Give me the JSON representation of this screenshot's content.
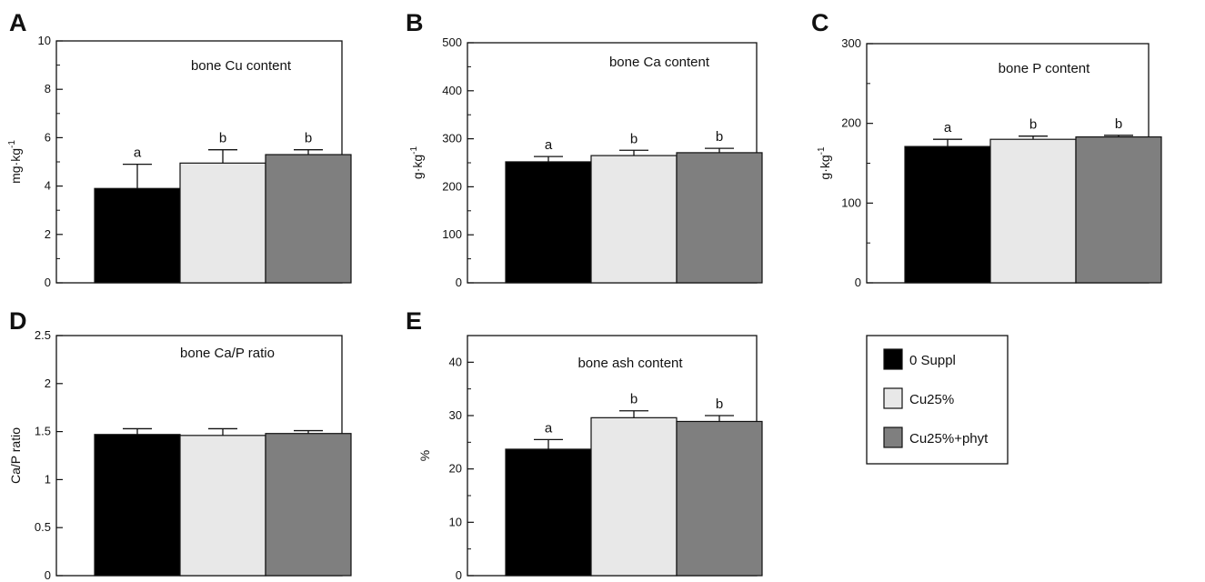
{
  "chart_data": [
    {
      "panel": "A",
      "type": "bar",
      "title": "bone Cu content",
      "ylabel": "mg·kg",
      "ylabel_sup": "-1",
      "ylim": [
        0,
        10
      ],
      "yticks": [
        0,
        2,
        4,
        6,
        8,
        10
      ],
      "ytick_labels": [
        "0",
        "2",
        "4",
        "6",
        "8",
        "10"
      ],
      "minor": true,
      "categories": [
        "0 Suppl",
        "Cu25%",
        "Cu25%+phyt"
      ],
      "values": [
        3.9,
        4.95,
        5.3
      ],
      "errors": [
        1.0,
        0.55,
        0.2
      ],
      "labels": [
        "a",
        "b",
        "b"
      ]
    },
    {
      "panel": "B",
      "type": "bar",
      "title": "bone Ca content",
      "ylabel": "g·kg",
      "ylabel_sup": "-1",
      "ylim": [
        0,
        500
      ],
      "yticks": [
        0,
        100,
        200,
        300,
        400,
        500
      ],
      "ytick_labels": [
        "0",
        "100",
        "200",
        "300",
        "400",
        "500"
      ],
      "minor": true,
      "categories": [
        "0 Suppl",
        "Cu25%",
        "Cu25%+phyt"
      ],
      "values": [
        252,
        265,
        271
      ],
      "errors": [
        11,
        11,
        9
      ],
      "labels": [
        "a",
        "b",
        "b"
      ]
    },
    {
      "panel": "C",
      "type": "bar",
      "title": "bone P content",
      "ylabel": "g·kg",
      "ylabel_sup": "-1",
      "ylim": [
        0,
        300
      ],
      "yticks": [
        0,
        100,
        200,
        300
      ],
      "ytick_labels": [
        "0",
        "100",
        "200",
        "300"
      ],
      "minor": true,
      "categories": [
        "0 Suppl",
        "Cu25%",
        "Cu25%+phyt"
      ],
      "values": [
        171,
        180,
        183
      ],
      "errors": [
        9,
        4,
        2
      ],
      "labels": [
        "a",
        "b",
        "b"
      ]
    },
    {
      "panel": "D",
      "type": "bar",
      "title": "bone Ca/P ratio",
      "ylabel": "Ca/P ratio",
      "ylabel_sup": "",
      "ylim": [
        0,
        2.5
      ],
      "yticks": [
        0,
        0.5,
        1,
        1.5,
        2,
        2.5
      ],
      "ytick_labels": [
        "0",
        "0.5",
        "1",
        "1.5",
        "2",
        "2.5"
      ],
      "minor": false,
      "categories": [
        "0 Suppl",
        "Cu25%",
        "Cu25%+phyt"
      ],
      "values": [
        1.47,
        1.46,
        1.48
      ],
      "errors": [
        0.06,
        0.07,
        0.03
      ],
      "labels": [
        "",
        "",
        ""
      ]
    },
    {
      "panel": "E",
      "type": "bar",
      "title": "bone ash content",
      "ylabel": "%",
      "ylabel_sup": "",
      "ylim": [
        0,
        45
      ],
      "yticks": [
        0,
        10,
        20,
        30,
        40
      ],
      "ytick_labels": [
        "0",
        "10",
        "20",
        "30",
        "40"
      ],
      "minor": true,
      "categories": [
        "0 Suppl",
        "Cu25%",
        "Cu25%+phyt"
      ],
      "values": [
        23.7,
        29.6,
        28.9
      ],
      "errors": [
        1.8,
        1.3,
        1.1
      ],
      "labels": [
        "a",
        "b",
        "b"
      ]
    }
  ],
  "legend": {
    "placement": "right",
    "items": [
      {
        "label": "0 Suppl",
        "color": "#000000"
      },
      {
        "label": "Cu25%",
        "color": "#e8e8e8"
      },
      {
        "label": "Cu25%+phyt",
        "color": "#7f7f7f"
      }
    ]
  },
  "colors": [
    "#000000",
    "#e8e8e8",
    "#7f7f7f"
  ]
}
